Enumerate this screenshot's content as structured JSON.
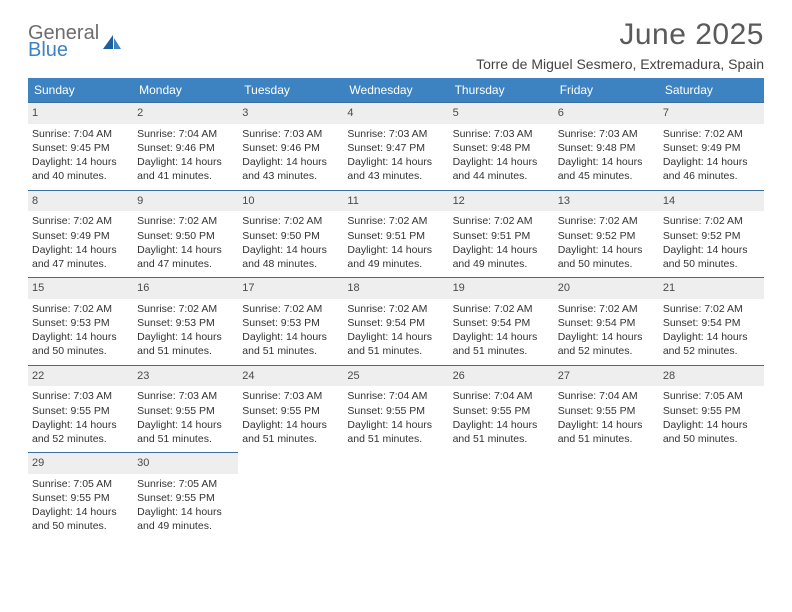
{
  "logo": {
    "word1": "General",
    "word2": "Blue"
  },
  "title": "June 2025",
  "location": "Torre de Miguel Sesmero, Extremadura, Spain",
  "colors": {
    "header_bg": "#3d83c2",
    "header_text": "#ffffff",
    "date_bar_bg": "#eeeeee",
    "date_bar_border": "#3a6fa0",
    "body_text": "#333333",
    "title_text": "#5a5a5a",
    "logo_gray": "#6d6d6d",
    "logo_blue": "#3d83c2"
  },
  "weekdays": [
    "Sunday",
    "Monday",
    "Tuesday",
    "Wednesday",
    "Thursday",
    "Friday",
    "Saturday"
  ],
  "weeks": [
    [
      {
        "date": "1",
        "sunrise": "7:04 AM",
        "sunset": "9:45 PM",
        "daylight": "14 hours and 40 minutes."
      },
      {
        "date": "2",
        "sunrise": "7:04 AM",
        "sunset": "9:46 PM",
        "daylight": "14 hours and 41 minutes."
      },
      {
        "date": "3",
        "sunrise": "7:03 AM",
        "sunset": "9:46 PM",
        "daylight": "14 hours and 43 minutes."
      },
      {
        "date": "4",
        "sunrise": "7:03 AM",
        "sunset": "9:47 PM",
        "daylight": "14 hours and 43 minutes."
      },
      {
        "date": "5",
        "sunrise": "7:03 AM",
        "sunset": "9:48 PM",
        "daylight": "14 hours and 44 minutes."
      },
      {
        "date": "6",
        "sunrise": "7:03 AM",
        "sunset": "9:48 PM",
        "daylight": "14 hours and 45 minutes."
      },
      {
        "date": "7",
        "sunrise": "7:02 AM",
        "sunset": "9:49 PM",
        "daylight": "14 hours and 46 minutes."
      }
    ],
    [
      {
        "date": "8",
        "sunrise": "7:02 AM",
        "sunset": "9:49 PM",
        "daylight": "14 hours and 47 minutes."
      },
      {
        "date": "9",
        "sunrise": "7:02 AM",
        "sunset": "9:50 PM",
        "daylight": "14 hours and 47 minutes."
      },
      {
        "date": "10",
        "sunrise": "7:02 AM",
        "sunset": "9:50 PM",
        "daylight": "14 hours and 48 minutes."
      },
      {
        "date": "11",
        "sunrise": "7:02 AM",
        "sunset": "9:51 PM",
        "daylight": "14 hours and 49 minutes."
      },
      {
        "date": "12",
        "sunrise": "7:02 AM",
        "sunset": "9:51 PM",
        "daylight": "14 hours and 49 minutes."
      },
      {
        "date": "13",
        "sunrise": "7:02 AM",
        "sunset": "9:52 PM",
        "daylight": "14 hours and 50 minutes."
      },
      {
        "date": "14",
        "sunrise": "7:02 AM",
        "sunset": "9:52 PM",
        "daylight": "14 hours and 50 minutes."
      }
    ],
    [
      {
        "date": "15",
        "sunrise": "7:02 AM",
        "sunset": "9:53 PM",
        "daylight": "14 hours and 50 minutes."
      },
      {
        "date": "16",
        "sunrise": "7:02 AM",
        "sunset": "9:53 PM",
        "daylight": "14 hours and 51 minutes."
      },
      {
        "date": "17",
        "sunrise": "7:02 AM",
        "sunset": "9:53 PM",
        "daylight": "14 hours and 51 minutes."
      },
      {
        "date": "18",
        "sunrise": "7:02 AM",
        "sunset": "9:54 PM",
        "daylight": "14 hours and 51 minutes."
      },
      {
        "date": "19",
        "sunrise": "7:02 AM",
        "sunset": "9:54 PM",
        "daylight": "14 hours and 51 minutes."
      },
      {
        "date": "20",
        "sunrise": "7:02 AM",
        "sunset": "9:54 PM",
        "daylight": "14 hours and 52 minutes."
      },
      {
        "date": "21",
        "sunrise": "7:02 AM",
        "sunset": "9:54 PM",
        "daylight": "14 hours and 52 minutes."
      }
    ],
    [
      {
        "date": "22",
        "sunrise": "7:03 AM",
        "sunset": "9:55 PM",
        "daylight": "14 hours and 52 minutes."
      },
      {
        "date": "23",
        "sunrise": "7:03 AM",
        "sunset": "9:55 PM",
        "daylight": "14 hours and 51 minutes."
      },
      {
        "date": "24",
        "sunrise": "7:03 AM",
        "sunset": "9:55 PM",
        "daylight": "14 hours and 51 minutes."
      },
      {
        "date": "25",
        "sunrise": "7:04 AM",
        "sunset": "9:55 PM",
        "daylight": "14 hours and 51 minutes."
      },
      {
        "date": "26",
        "sunrise": "7:04 AM",
        "sunset": "9:55 PM",
        "daylight": "14 hours and 51 minutes."
      },
      {
        "date": "27",
        "sunrise": "7:04 AM",
        "sunset": "9:55 PM",
        "daylight": "14 hours and 51 minutes."
      },
      {
        "date": "28",
        "sunrise": "7:05 AM",
        "sunset": "9:55 PM",
        "daylight": "14 hours and 50 minutes."
      }
    ],
    [
      {
        "date": "29",
        "sunrise": "7:05 AM",
        "sunset": "9:55 PM",
        "daylight": "14 hours and 50 minutes."
      },
      {
        "date": "30",
        "sunrise": "7:05 AM",
        "sunset": "9:55 PM",
        "daylight": "14 hours and 49 minutes."
      },
      null,
      null,
      null,
      null,
      null
    ]
  ],
  "labels": {
    "sunrise": "Sunrise:",
    "sunset": "Sunset:",
    "daylight": "Daylight:"
  }
}
